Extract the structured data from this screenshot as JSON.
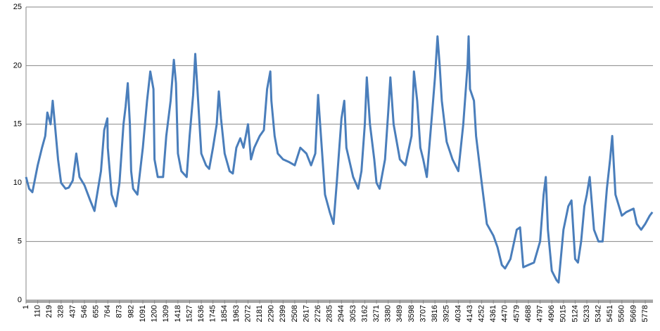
{
  "chart_data": {
    "type": "line",
    "x": [
      1,
      30,
      60,
      110,
      150,
      180,
      200,
      230,
      250,
      270,
      300,
      328,
      370,
      400,
      437,
      470,
      500,
      546,
      600,
      640,
      655,
      700,
      730,
      760,
      764,
      800,
      840,
      873,
      910,
      930,
      950,
      970,
      982,
      1000,
      1040,
      1091,
      1130,
      1160,
      1190,
      1200,
      1230,
      1280,
      1309,
      1350,
      1380,
      1400,
      1418,
      1450,
      1500,
      1527,
      1560,
      1580,
      1600,
      1636,
      1680,
      1710,
      1745,
      1780,
      1800,
      1820,
      1854,
      1900,
      1930,
      1963,
      2000,
      2030,
      2072,
      2100,
      2130,
      2181,
      2220,
      2250,
      2280,
      2290,
      2320,
      2350,
      2399,
      2450,
      2508,
      2560,
      2617,
      2660,
      2700,
      2726,
      2760,
      2790,
      2835,
      2870,
      2900,
      2944,
      2970,
      2990,
      3053,
      3100,
      3130,
      3162,
      3180,
      3210,
      3250,
      3271,
      3300,
      3350,
      3380,
      3400,
      3430,
      3489,
      3540,
      3598,
      3620,
      3650,
      3680,
      3707,
      3740,
      3790,
      3816,
      3840,
      3860,
      3880,
      3925,
      3980,
      4034,
      4080,
      4120,
      4130,
      4143,
      4180,
      4200,
      4252,
      4300,
      4361,
      4400,
      4440,
      4470,
      4520,
      4579,
      4610,
      4640,
      4688,
      4740,
      4797,
      4830,
      4850,
      4870,
      4906,
      4950,
      4970,
      5015,
      5060,
      5090,
      5124,
      5150,
      5180,
      5210,
      5233,
      5260,
      5300,
      5342,
      5380,
      5420,
      5450,
      5470,
      5500,
      5560,
      5600,
      5669,
      5700,
      5740,
      5778,
      5820,
      5845
    ],
    "values": [
      10.5,
      9.5,
      9.2,
      11.5,
      13,
      14,
      16,
      15,
      17,
      15,
      12,
      10,
      9.5,
      9.6,
      10.2,
      12.5,
      10.5,
      9.8,
      8.5,
      7.6,
      8.5,
      11,
      14.5,
      15.5,
      13,
      9,
      8,
      10,
      15,
      16.5,
      18.5,
      15,
      11,
      9.5,
      9,
      13,
      17,
      19.5,
      18,
      12,
      10.5,
      10.5,
      14,
      17,
      20.5,
      18.5,
      12.5,
      11,
      10.5,
      14,
      17.5,
      21,
      18,
      12.5,
      11.5,
      11.2,
      13,
      15,
      17.8,
      15.5,
      12.5,
      11,
      10.8,
      13,
      13.8,
      13,
      15,
      12,
      13,
      14,
      14.5,
      18,
      19.5,
      17,
      14,
      12.5,
      12,
      11.8,
      11.5,
      13,
      12.5,
      11.5,
      12.5,
      17.5,
      13,
      9,
      7.5,
      6.5,
      10,
      15.5,
      17,
      13,
      10.5,
      9.5,
      11,
      15,
      19,
      15,
      12,
      10,
      9.5,
      12,
      16,
      19,
      15,
      12,
      11.5,
      14,
      19.5,
      17,
      13,
      12,
      10.5,
      16,
      19,
      22.5,
      20,
      17,
      13.5,
      12,
      11,
      15,
      20,
      22.5,
      18,
      17,
      14,
      10,
      6.5,
      5.5,
      4.5,
      3,
      2.7,
      3.5,
      6,
      6.2,
      2.8,
      3,
      3.2,
      5,
      9,
      10.5,
      6,
      2.5,
      1.7,
      1.5,
      6,
      8,
      8.5,
      3.5,
      3.2,
      5,
      8,
      9,
      10.5,
      6,
      5,
      5,
      9.5,
      12,
      14,
      9,
      7.2,
      7.5,
      7.8,
      6.5,
      6,
      6.5,
      7.2,
      7.5
    ],
    "color": "#4a7ebb",
    "xlim": [
      1,
      5850
    ],
    "xticks": [
      1,
      110,
      219,
      328,
      437,
      546,
      655,
      764,
      873,
      982,
      1091,
      1200,
      1309,
      1418,
      1527,
      1636,
      1745,
      1854,
      1963,
      2072,
      2181,
      2290,
      2399,
      2508,
      2617,
      2726,
      2835,
      2944,
      3053,
      3162,
      3271,
      3380,
      3489,
      3598,
      3707,
      3816,
      3925,
      4034,
      4143,
      4252,
      4361,
      4470,
      4579,
      4688,
      4797,
      4906,
      5015,
      5124,
      5233,
      5342,
      5451,
      5560,
      5669,
      5778
    ],
    "ylim": [
      0,
      25
    ],
    "yticks": [
      0,
      5,
      10,
      15,
      20,
      25
    ],
    "grid": true
  }
}
